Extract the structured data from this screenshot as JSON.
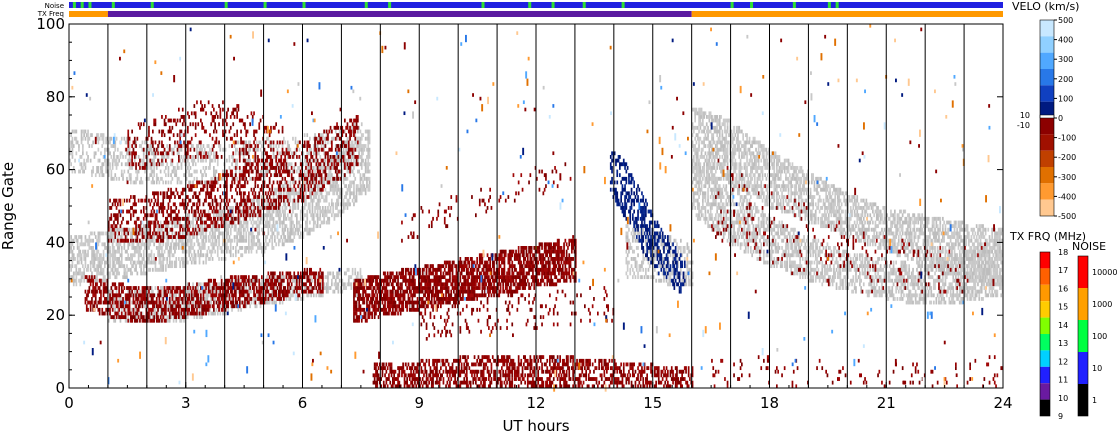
{
  "chart_data": {
    "type": "heatmap",
    "title": "",
    "xlabel": "UT hours",
    "ylabel": "Range Gate",
    "xlim": [
      0,
      24
    ],
    "ylim": [
      0,
      100
    ],
    "x_ticks": [
      0,
      3,
      6,
      9,
      12,
      15,
      18,
      21,
      24
    ],
    "x_tick_labels": [
      "0",
      "3",
      "6",
      "9",
      "12",
      "15",
      "18",
      "21",
      "24"
    ],
    "y_ticks": [
      0,
      20,
      40,
      60,
      80,
      100
    ],
    "y_tick_labels": [
      "0",
      "20",
      "40",
      "60",
      "80",
      "100"
    ],
    "vertical_lines_ut": [
      1.0,
      2.0,
      3.0,
      4.0,
      5.0,
      6.0,
      7.0,
      8.0,
      9.0,
      10.0,
      11.0,
      12.0,
      13.0,
      14.0,
      15.0,
      16.0,
      17.0,
      18.0,
      19.0,
      20.0,
      21.0,
      22.0,
      23.0,
      24.0
    ],
    "top_bars": {
      "noise_label": "Noise",
      "txfreq_label": "TX Freq",
      "noise_color": "#2020e0",
      "noise_green_marks_ut": [
        0.1,
        0.3,
        0.5,
        1.1,
        2.1,
        4.0,
        5.0,
        6.0,
        7.6,
        8.2,
        10.6,
        11.8,
        12.4,
        13.2,
        14.2,
        17.0,
        17.5,
        18.6,
        19.5,
        19.7
      ],
      "txfreq_segments": [
        {
          "start": 0.0,
          "end": 1.0,
          "color": "#ff9900"
        },
        {
          "start": 1.0,
          "end": 16.0,
          "color": "#5a1aa0"
        },
        {
          "start": 16.0,
          "end": 24.0,
          "color": "#ff9900"
        }
      ]
    },
    "velocity_colorbar": {
      "title": "VELO (km/s)",
      "ticks": [
        "500",
        "400",
        "300",
        "200",
        "100",
        "0",
        "-100",
        "-200",
        "-300",
        "-400",
        "-500"
      ],
      "side_labels": [
        "10",
        "-10"
      ],
      "colors": [
        "#c8e8ff",
        "#90d0ff",
        "#50a8ff",
        "#2878e8",
        "#1040c0",
        "#001a80",
        "#8c0000",
        "#a01000",
        "#c04000",
        "#e07000",
        "#ff9a30",
        "#ffc890"
      ]
    },
    "txfreq_colorbar": {
      "title": "TX FRQ (MHz)",
      "ticks": [
        "18",
        "17",
        "16",
        "15",
        "14",
        "13",
        "12",
        "11",
        "10",
        "9"
      ],
      "colors": [
        "#ff0000",
        "#ff6000",
        "#ff9900",
        "#ffcc00",
        "#80ff00",
        "#00ff60",
        "#00d0ff",
        "#2020ff",
        "#6a1aa0",
        "#000000"
      ]
    },
    "noise_colorbar": {
      "title": "NOISE",
      "ticks": [
        "10000",
        "1000",
        "100",
        "10",
        "1"
      ],
      "colors": [
        "#ff0000",
        "#ffa000",
        "#00ff40",
        "#2020ff",
        "#000000"
      ]
    },
    "scatter_bands": [
      {
        "name_hidden": "g1",
        "kind": "gray",
        "ut": [
          0.0,
          1.0,
          2.0,
          3.0,
          4.0,
          5.0,
          6.0,
          7.0,
          7.7
        ],
        "gate_low": [
          28,
          30,
          32,
          34,
          36,
          38,
          42,
          48,
          55
        ],
        "gate_high": [
          40,
          42,
          44,
          46,
          48,
          52,
          58,
          64,
          70
        ],
        "density": 0.55
      },
      {
        "name_hidden": "g2",
        "kind": "gray",
        "ut": [
          0.0,
          1.0,
          2.0,
          3.0,
          4.0,
          5.0,
          6.0,
          7.0,
          7.5
        ],
        "gate_low": [
          60,
          58,
          56,
          56,
          57,
          58,
          60,
          62,
          64
        ],
        "gate_high": [
          70,
          68,
          66,
          66,
          66,
          67,
          68,
          70,
          72
        ],
        "density": 0.35
      },
      {
        "name_hidden": "g3",
        "kind": "gray",
        "ut": [
          1.0,
          2.0,
          3.0,
          4.0,
          5.0,
          6.0,
          7.0,
          7.5
        ],
        "gate_low": [
          18,
          18,
          19,
          21,
          23,
          25,
          27,
          28
        ],
        "gate_high": [
          26,
          26,
          27,
          28,
          29,
          30,
          31,
          32
        ],
        "density": 0.5
      },
      {
        "name_hidden": "g4",
        "kind": "gray",
        "ut": [
          16.0,
          17.0,
          18.0,
          19.0,
          20.0,
          21.0,
          22.0,
          23.0,
          24.0
        ],
        "gate_low": [
          58,
          56,
          50,
          46,
          42,
          38,
          34,
          30,
          28
        ],
        "gate_high": [
          76,
          72,
          64,
          58,
          52,
          48,
          46,
          44,
          42
        ],
        "density": 0.6
      },
      {
        "name_hidden": "g5",
        "kind": "gray",
        "ut": [
          16.0,
          17.0,
          18.0,
          19.0,
          20.0,
          21.0,
          22.0,
          23.0,
          24.0
        ],
        "gate_low": [
          48,
          40,
          34,
          30,
          27,
          25,
          23,
          24,
          26
        ],
        "gate_high": [
          60,
          54,
          46,
          40,
          36,
          34,
          32,
          36,
          40
        ],
        "density": 0.55
      },
      {
        "name_hidden": "g6",
        "kind": "gray",
        "ut": [
          14.3,
          15.0,
          15.5,
          16.0
        ],
        "gate_low": [
          30,
          30,
          28,
          28
        ],
        "gate_high": [
          44,
          42,
          40,
          38
        ],
        "density": 0.4
      },
      {
        "name_hidden": "r1",
        "kind": "red",
        "ut": [
          0.4,
          1.0,
          2.0,
          3.0,
          4.0,
          5.0,
          6.0,
          6.5
        ],
        "gate_low": [
          22,
          20,
          18,
          20,
          22,
          24,
          26,
          27
        ],
        "gate_high": [
          30,
          28,
          26,
          27,
          29,
          30,
          31,
          32
        ],
        "density": 0.55
      },
      {
        "name_hidden": "r2",
        "kind": "red",
        "ut": [
          1.0,
          2.0,
          3.0,
          4.0,
          5.0,
          6.0,
          7.0,
          7.4
        ],
        "gate_low": [
          40,
          40,
          42,
          45,
          48,
          52,
          58,
          62
        ],
        "gate_high": [
          50,
          52,
          54,
          58,
          62,
          66,
          72,
          74
        ],
        "density": 0.35
      },
      {
        "name_hidden": "r3",
        "kind": "red",
        "ut": [
          1.5,
          2.5,
          3.5,
          4.5,
          5.5
        ],
        "gate_low": [
          60,
          62,
          64,
          62,
          60
        ],
        "gate_high": [
          70,
          74,
          78,
          76,
          70
        ],
        "density": 0.2
      },
      {
        "name_hidden": "r4",
        "kind": "red",
        "ut": [
          7.3,
          8.0,
          9.0,
          10.0,
          11.0,
          12.0,
          13.0
        ],
        "gate_low": [
          18,
          20,
          22,
          24,
          26,
          28,
          30
        ],
        "gate_high": [
          28,
          30,
          32,
          34,
          36,
          38,
          40
        ],
        "density": 0.7
      },
      {
        "name_hidden": "r5",
        "kind": "red",
        "ut": [
          9.0,
          10.0,
          11.0,
          12.0,
          13.0,
          14.0
        ],
        "gate_low": [
          14,
          15,
          16,
          17,
          18,
          19
        ],
        "gate_high": [
          22,
          23,
          24,
          25,
          26,
          27
        ],
        "density": 0.12
      },
      {
        "name_hidden": "r6",
        "kind": "red",
        "ut": [
          7.8,
          9.0,
          10.0,
          11.0,
          12.0,
          13.0,
          14.0,
          15.0,
          16.0
        ],
        "gate_low": [
          0,
          0,
          0,
          0,
          0,
          0,
          0,
          0,
          0
        ],
        "gate_high": [
          5,
          6,
          7,
          8,
          8,
          7,
          6,
          5,
          4
        ],
        "density": 0.5
      },
      {
        "name_hidden": "r7",
        "kind": "red",
        "ut": [
          8.5,
          10.0,
          11.5,
          13.0
        ],
        "gate_low": [
          40,
          46,
          52,
          56
        ],
        "gate_high": [
          46,
          52,
          58,
          62
        ],
        "density": 0.05
      },
      {
        "name_hidden": "b1",
        "kind": "blue",
        "ut": [
          13.9,
          14.3,
          14.7,
          15.1,
          15.5,
          15.8
        ],
        "gate_low": [
          54,
          46,
          38,
          32,
          28,
          26
        ],
        "gate_high": [
          66,
          60,
          52,
          44,
          38,
          34
        ],
        "density": 0.45
      },
      {
        "name_hidden": "r8",
        "kind": "red",
        "ut": [
          16.5,
          18.0,
          19.5,
          21.0,
          22.5,
          23.5
        ],
        "gate_low": [
          40,
          34,
          28,
          26,
          26,
          26
        ],
        "gate_high": [
          62,
          54,
          46,
          40,
          38,
          40
        ],
        "density": 0.05
      },
      {
        "name_hidden": "r9",
        "kind": "red",
        "ut": [
          16.5,
          18.0,
          19.5,
          21.0,
          22.5,
          24.0
        ],
        "gate_low": [
          0,
          0,
          0,
          0,
          0,
          0
        ],
        "gate_high": [
          8,
          7,
          6,
          6,
          6,
          8
        ],
        "density": 0.06
      }
    ],
    "sparse_noise": {
      "ut_range": [
        0,
        24
      ],
      "gate_range": [
        0,
        100
      ],
      "count": 420
    }
  }
}
